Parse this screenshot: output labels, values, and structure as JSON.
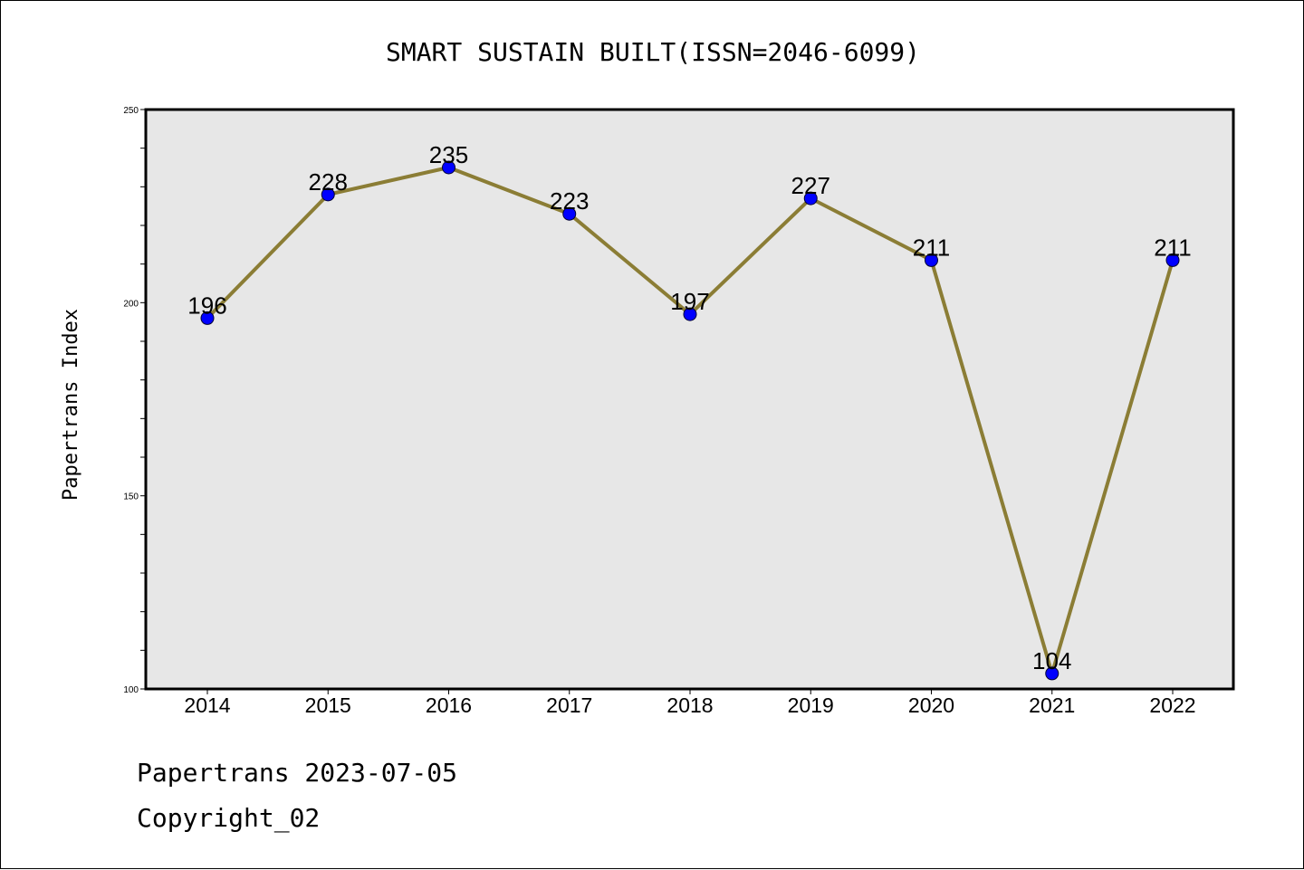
{
  "chart_data": {
    "type": "line",
    "title": "SMART SUSTAIN BUILT(ISSN=2046-6099)",
    "ylabel": "Papertrans Index",
    "xlabel": "",
    "categories": [
      "2014",
      "2015",
      "2016",
      "2017",
      "2018",
      "2019",
      "2020",
      "2021",
      "2022"
    ],
    "series": [
      {
        "values": [
          196,
          228,
          235,
          223,
          197,
          227,
          211,
          104,
          211
        ]
      }
    ],
    "ylim": [
      100,
      250
    ],
    "yticks": [
      100,
      150,
      200,
      250
    ],
    "grid": false,
    "line_color": "#8B7D35",
    "marker_color": "#0000FF",
    "plot_bg": "#E7E7E7"
  },
  "footer": {
    "line1": "Papertrans 2023-07-05",
    "line2": "Copyright_02"
  }
}
